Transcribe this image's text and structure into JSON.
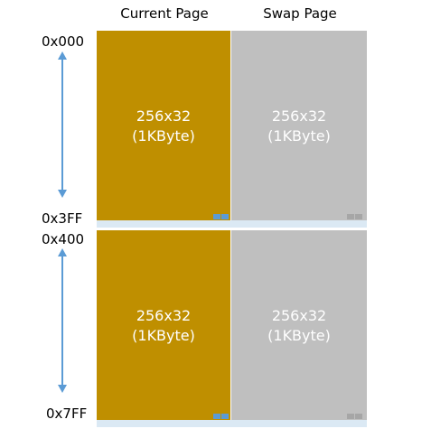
{
  "headers": {
    "current": "Current Page",
    "swap": "Swap Page"
  },
  "addresses": {
    "a0": "0x000",
    "a1": "0x3FF",
    "a2": "0x400",
    "a3": "0x7FF"
  },
  "blocks": [
    {
      "current": {
        "size": "256x32",
        "bytes": "(1KByte)"
      },
      "swap": {
        "size": "256x32",
        "bytes": "(1KByte)"
      }
    },
    {
      "current": {
        "size": "256x32",
        "bytes": "(1KByte)"
      },
      "swap": {
        "size": "256x32",
        "bytes": "(1KByte)"
      }
    }
  ],
  "colors": {
    "current": "#bf8f00",
    "swap": "#bfbfbf",
    "arrow": "#5b9bd5",
    "strip": "#dbe9f4",
    "mini_current": "#5b9bd5",
    "mini_swap": "#a6a6a6"
  }
}
